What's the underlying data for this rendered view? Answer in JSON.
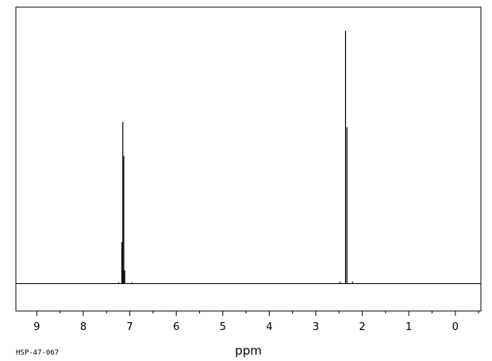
{
  "chart_data": {
    "type": "line",
    "xlabel": "ppm",
    "ylabel": "",
    "x_reversed": true,
    "xlim": [
      9.45,
      -0.55
    ],
    "ylim": [
      -0.1,
      1.0
    ],
    "grid": false,
    "x_ticks": [
      9,
      8,
      7,
      6,
      5,
      4,
      3,
      2,
      1,
      0
    ],
    "x_tick_labels": [
      "9",
      "8",
      "7",
      "6",
      "5",
      "4",
      "3",
      "2",
      "1",
      "0"
    ],
    "minor_tick_step": 0.5,
    "peaks": [
      {
        "ppm": 7.24,
        "height": 0.005
      },
      {
        "ppm": 7.17,
        "height": 0.16
      },
      {
        "ppm": 7.15,
        "height": 0.62
      },
      {
        "ppm": 7.13,
        "height": 0.49
      },
      {
        "ppm": 7.11,
        "height": 0.05
      },
      {
        "ppm": 6.95,
        "height": 0.005
      },
      {
        "ppm": 2.48,
        "height": 0.008
      },
      {
        "ppm": 2.36,
        "height": 0.97
      },
      {
        "ppm": 2.33,
        "height": 0.6
      },
      {
        "ppm": 2.21,
        "height": 0.008
      }
    ],
    "sample_code": "HSP-47-067"
  }
}
